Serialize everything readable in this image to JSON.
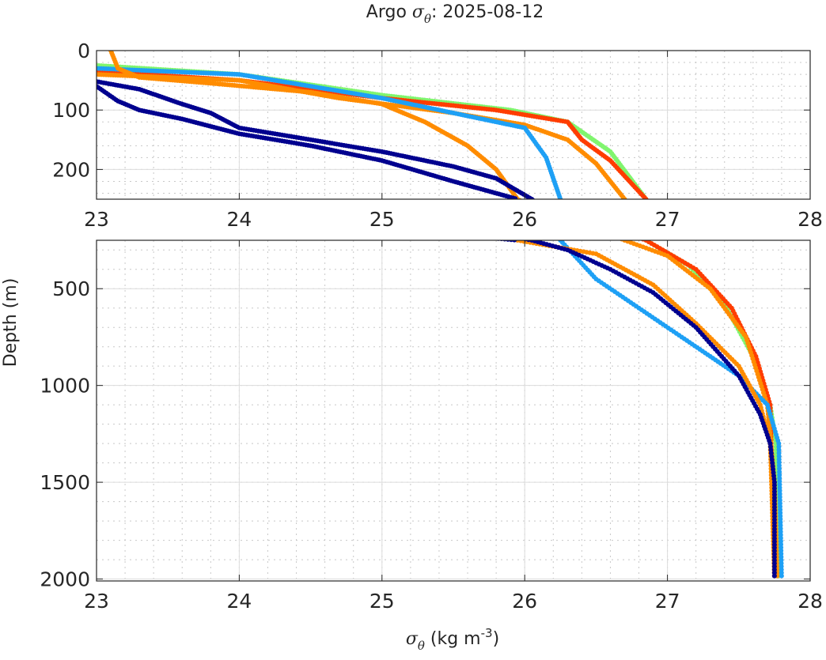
{
  "chart_data": {
    "type": "scatter",
    "title_prefix": "Argo ",
    "title_symbol": "σ",
    "title_sub": "θ",
    "title_suffix": ": 2025-08-12",
    "xlabel_symbol": "σ",
    "xlabel_sub": "θ",
    "xlabel_text": " (kg m",
    "xlabel_sup": "-3",
    "xlabel_close": ")",
    "ylabel": "Depth (m)",
    "xlim": [
      23,
      28
    ],
    "ylim_top": [
      0,
      250
    ],
    "ylim_bottom": [
      250,
      2010
    ],
    "xticks": [
      "23",
      "24",
      "25",
      "26",
      "27",
      "28"
    ],
    "yticks_top": [
      "0",
      "100",
      "200"
    ],
    "yticks_bottom": [
      "500",
      "1000",
      "1500",
      "2000"
    ],
    "grid": true,
    "series": [
      {
        "name": "profile-green",
        "color": "#80f56e",
        "sigma": [
          23,
          24,
          25,
          25.9,
          26.3,
          26.6,
          26.85,
          27.15,
          27.4,
          27.6,
          27.72,
          27.76,
          27.78
        ],
        "depth": [
          25,
          40,
          75,
          100,
          120,
          170,
          250,
          380,
          580,
          850,
          1100,
          1300,
          2000
        ]
      },
      {
        "name": "profile-red",
        "color": "#ff3d00",
        "sigma": [
          23,
          24,
          25,
          25.8,
          26.3,
          26.4,
          26.6,
          26.85,
          27.2,
          27.45,
          27.62,
          27.72,
          27.75
        ],
        "depth": [
          35,
          50,
          80,
          100,
          120,
          150,
          185,
          250,
          400,
          600,
          850,
          1100,
          2000
        ]
      },
      {
        "name": "profile-orange-2",
        "color": "#ff8c00",
        "sigma": [
          23,
          24,
          24.7,
          25.5,
          26,
          26.3,
          26.5,
          26.7,
          27.0,
          27.3,
          27.55,
          27.7,
          27.75,
          27.77
        ],
        "depth": [
          40,
          50,
          80,
          105,
          125,
          150,
          190,
          250,
          330,
          500,
          750,
          1100,
          1500,
          2000
        ]
      },
      {
        "name": "profile-light-blue",
        "color": "#1ea0f5",
        "sigma": [
          23,
          24,
          25,
          25.6,
          26,
          26.15,
          26.25,
          26.5,
          26.8,
          27.1,
          27.3,
          27.5,
          27.7,
          27.78,
          27.8
        ],
        "depth": [
          30,
          40,
          80,
          110,
          130,
          180,
          250,
          450,
          600,
          750,
          850,
          950,
          1100,
          1300,
          2000
        ]
      },
      {
        "name": "profile-orange-1",
        "color": "#ff8c00",
        "sigma": [
          23.1,
          23.15,
          23.3,
          23.8,
          24.5,
          25,
          25.3,
          25.6,
          25.8,
          25.95,
          26.5,
          26.9,
          27.2,
          27.5,
          27.65,
          27.72,
          27.75
        ],
        "depth": [
          0,
          30,
          45,
          55,
          70,
          90,
          120,
          160,
          200,
          250,
          320,
          480,
          680,
          900,
          1100,
          1300,
          2000
        ]
      },
      {
        "name": "profile-dark-blue-2",
        "color": "#00008f",
        "sigma": [
          23,
          23.15,
          23.3,
          23.6,
          24,
          24.5,
          25,
          25.5,
          25.95
        ],
        "depth": [
          60,
          85,
          100,
          115,
          140,
          160,
          185,
          220,
          250
        ]
      },
      {
        "name": "profile-dark-blue-1",
        "color": "#00008f",
        "sigma": [
          23,
          23.3,
          23.6,
          23.8,
          24,
          24.5,
          25,
          25.5,
          25.8,
          26.05,
          26.3,
          26.6,
          26.9,
          27.2,
          27.5,
          27.65,
          27.72,
          27.75,
          27.75
        ],
        "depth": [
          52,
          65,
          90,
          105,
          130,
          150,
          170,
          195,
          215,
          250,
          300,
          400,
          520,
          700,
          950,
          1150,
          1300,
          1500,
          2000
        ]
      }
    ]
  }
}
